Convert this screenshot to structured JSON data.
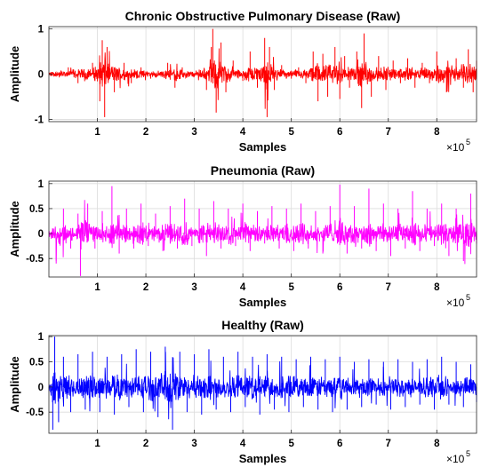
{
  "chart_data": [
    {
      "type": "line",
      "title": "Chronic Obstructive Pulmonary Disease (Raw)",
      "xlabel": "Samples",
      "ylabel": "Amplitude",
      "x_exponent_base": "×10",
      "x_exponent_power": "5",
      "xlim": [
        0,
        88200
      ],
      "ylim": [
        -1.05,
        1.05
      ],
      "xticks": [
        10000,
        20000,
        30000,
        40000,
        50000,
        60000,
        70000,
        80000
      ],
      "xtick_labels": [
        "1",
        "2",
        "3",
        "4",
        "5",
        "6",
        "7",
        "8"
      ],
      "yticks": [
        -1,
        0,
        1
      ],
      "ytick_labels": [
        "-1",
        "0",
        "1"
      ],
      "grid": true,
      "color": "#ff0000",
      "series": [
        {
          "x": [
            0,
            4000,
            6000,
            9000,
            10500,
            11000,
            11500,
            12000,
            13500,
            15500,
            17000,
            19000,
            21000,
            23000,
            24500,
            26000,
            27500,
            29000,
            31000,
            32500,
            33500,
            33800,
            34500,
            35500,
            36500,
            38000,
            40000,
            41500,
            43000,
            44500,
            45000,
            45500,
            46500,
            48000,
            50000,
            51500,
            53000,
            54500,
            55500,
            56500,
            57500,
            59000,
            60000,
            61000,
            62000,
            63500,
            64500,
            65000,
            66500,
            68000,
            69500,
            71000,
            72500,
            74000,
            75500,
            77000,
            78500,
            80000,
            82000,
            84000,
            85500,
            86500,
            87500,
            88200
          ],
          "values": [
            0,
            0.15,
            -0.2,
            0.25,
            -0.6,
            0.75,
            -0.95,
            0.6,
            -0.4,
            0.25,
            -0.2,
            0.15,
            -0.1,
            0.05,
            0.25,
            -0.3,
            0.15,
            -0.05,
            0.1,
            -0.35,
            0.6,
            1.0,
            -0.85,
            0.7,
            -0.4,
            0.3,
            -0.15,
            0.5,
            -0.3,
            0.8,
            -0.95,
            0.6,
            -0.35,
            0.2,
            -0.1,
            0.15,
            -0.2,
            0.5,
            -0.6,
            0.45,
            -0.5,
            0.6,
            -0.55,
            0.4,
            -0.3,
            0.5,
            -0.75,
            0.9,
            -0.5,
            0.4,
            -0.35,
            0.3,
            -0.2,
            0.35,
            -0.3,
            0.25,
            -0.2,
            0.5,
            -0.4,
            0.35,
            -0.3,
            0.55,
            -0.4,
            0.3
          ]
        }
      ]
    },
    {
      "type": "line",
      "title": "Pneumonia (Raw)",
      "xlabel": "Samples",
      "ylabel": "Amplitude",
      "x_exponent_base": "×10",
      "x_exponent_power": "5",
      "xlim": [
        0,
        88200
      ],
      "ylim": [
        -0.87,
        1.05
      ],
      "xticks": [
        10000,
        20000,
        30000,
        40000,
        50000,
        60000,
        70000,
        80000
      ],
      "xtick_labels": [
        "1",
        "2",
        "3",
        "4",
        "5",
        "6",
        "7",
        "8"
      ],
      "yticks": [
        -0.5,
        0,
        0.5,
        1
      ],
      "ytick_labels": [
        "-0.5",
        "0",
        "0.5",
        "1"
      ],
      "grid": true,
      "color": "#ff00ff",
      "series": [
        {
          "x": [
            0,
            1500,
            3000,
            4500,
            6000,
            6500,
            8000,
            9500,
            11000,
            12500,
            13000,
            14500,
            16000,
            17500,
            19000,
            20500,
            22000,
            23500,
            25000,
            26500,
            28000,
            29500,
            31000,
            32500,
            34000,
            35500,
            37000,
            38500,
            40000,
            41500,
            43000,
            44500,
            46000,
            47500,
            49000,
            50500,
            52000,
            53500,
            55000,
            56500,
            58000,
            59500,
            60000,
            61500,
            63000,
            64500,
            66000,
            67500,
            69000,
            70500,
            72000,
            73500,
            75000,
            76500,
            78000,
            79500,
            81000,
            82500,
            84000,
            85500,
            87000,
            88200
          ],
          "values": [
            0,
            -0.6,
            0.5,
            -0.3,
            0.4,
            -0.85,
            0.6,
            -0.3,
            0.45,
            -0.2,
            0.95,
            -0.4,
            0.5,
            -0.3,
            0.6,
            -0.25,
            0.4,
            -0.35,
            0.55,
            -0.3,
            0.7,
            -0.25,
            0.5,
            -0.45,
            0.65,
            -0.3,
            0.5,
            -0.25,
            0.6,
            -0.35,
            0.45,
            -0.2,
            0.55,
            -0.3,
            0.5,
            -0.35,
            0.6,
            -0.3,
            0.45,
            -0.4,
            0.55,
            -0.2,
            0.98,
            -0.4,
            0.55,
            -0.3,
            0.9,
            -0.35,
            0.6,
            -0.45,
            0.5,
            -0.3,
            0.85,
            -0.35,
            0.5,
            -0.25,
            0.6,
            -0.45,
            0.5,
            -0.55,
            0.8,
            -0.2
          ]
        }
      ]
    },
    {
      "type": "line",
      "title": "Healthy (Raw)",
      "xlabel": "Samples",
      "ylabel": "Amplitude",
      "x_exponent_base": "×10",
      "x_exponent_power": "5",
      "xlim": [
        0,
        88200
      ],
      "ylim": [
        -0.92,
        1.02
      ],
      "xticks": [
        10000,
        20000,
        30000,
        40000,
        50000,
        60000,
        70000,
        80000
      ],
      "xtick_labels": [
        "1",
        "2",
        "3",
        "4",
        "5",
        "6",
        "7",
        "8"
      ],
      "yticks": [
        -0.5,
        0,
        0.5,
        1
      ],
      "ytick_labels": [
        "-0.5",
        "0",
        "0.5",
        "1"
      ],
      "grid": true,
      "color": "#0000ff",
      "series": [
        {
          "x": [
            0,
            800,
            1200,
            2000,
            3000,
            4500,
            6000,
            7500,
            9000,
            10500,
            12000,
            13500,
            15000,
            16500,
            18000,
            19500,
            21000,
            22500,
            24000,
            25500,
            27000,
            28500,
            30000,
            31500,
            33000,
            34500,
            36000,
            37500,
            39000,
            40500,
            42000,
            43500,
            45000,
            46500,
            48000,
            49500,
            51000,
            52500,
            54000,
            55500,
            57000,
            58500,
            60000,
            61500,
            63000,
            64500,
            66000,
            67500,
            69000,
            70500,
            72000,
            73500,
            75000,
            76500,
            78000,
            79500,
            81000,
            82500,
            84000,
            85500,
            87000,
            88200
          ],
          "values": [
            0,
            -0.85,
            1.0,
            -0.7,
            0.6,
            -0.5,
            0.65,
            -0.45,
            0.7,
            -0.5,
            0.6,
            -0.55,
            0.65,
            -0.4,
            0.75,
            -0.5,
            0.7,
            -0.6,
            0.8,
            -0.85,
            0.7,
            -0.5,
            0.65,
            -0.55,
            0.75,
            -0.45,
            0.6,
            -0.5,
            0.7,
            -0.4,
            0.6,
            -0.55,
            0.65,
            -0.45,
            0.6,
            -0.5,
            0.55,
            -0.4,
            0.6,
            -0.45,
            0.55,
            -0.5,
            0.6,
            -0.45,
            0.5,
            -0.4,
            0.55,
            -0.35,
            0.5,
            -0.45,
            0.55,
            -0.4,
            0.5,
            -0.35,
            0.55,
            -0.45,
            0.6,
            -0.35,
            0.5,
            -0.4,
            0.45,
            -0.3
          ]
        }
      ]
    }
  ]
}
